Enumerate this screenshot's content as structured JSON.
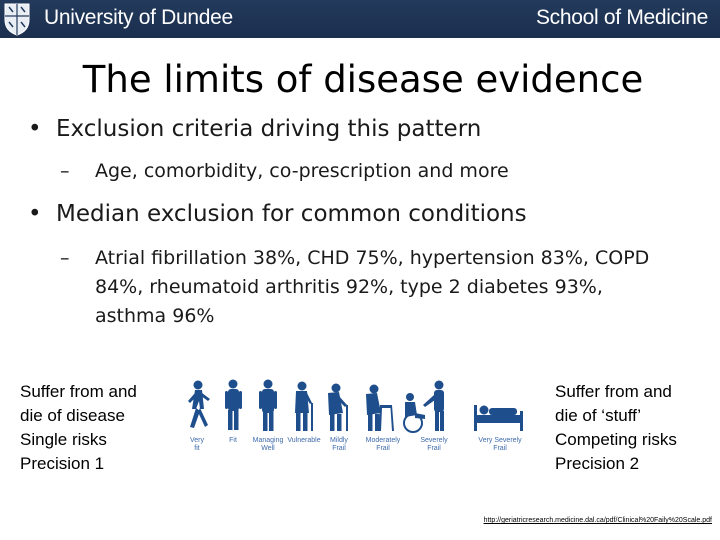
{
  "header": {
    "university": "University of Dundee",
    "school": "School of Medicine"
  },
  "slide": {
    "title": "The limits of disease evidence",
    "bullets": [
      {
        "text": "Exclusion criteria driving this pattern",
        "sub": "Age, comorbidity, co-prescription and more"
      },
      {
        "text": "Median exclusion for common conditions",
        "sub": "Atrial fibrillation 38%, CHD 75%, hypertension 83%, COPD 84%, rheumatoid arthritis 92%, type 2 diabetes 93%, asthma 96%"
      }
    ],
    "left_box": [
      "Suffer from and",
      "die of disease",
      "Single risks",
      "Precision 1"
    ],
    "right_box": [
      "Suffer from and",
      "die of ‘stuff’",
      "Competing risks",
      "Precision 2"
    ],
    "frailty_scale": [
      {
        "l1": "Very",
        "l2": "fit"
      },
      {
        "l1": "Fit",
        "l2": ""
      },
      {
        "l1": "Managing",
        "l2": "Well"
      },
      {
        "l1": "Vulnerable",
        "l2": ""
      },
      {
        "l1": "Mildly",
        "l2": "Frail"
      },
      {
        "l1": "Moderately",
        "l2": "Frail"
      },
      {
        "l1": "Severely",
        "l2": "Frail"
      },
      {
        "l1": "Very Severely",
        "l2": "Frail"
      }
    ],
    "source_url": "http://geriatricresearch.medicine.dal.ca/pdf/Clinical%20Faily%20Scale.pdf"
  },
  "colors": {
    "header_bg": "#1b2f4e",
    "figure_blue": "#1f4e8c",
    "label_blue": "#3f6bab"
  }
}
